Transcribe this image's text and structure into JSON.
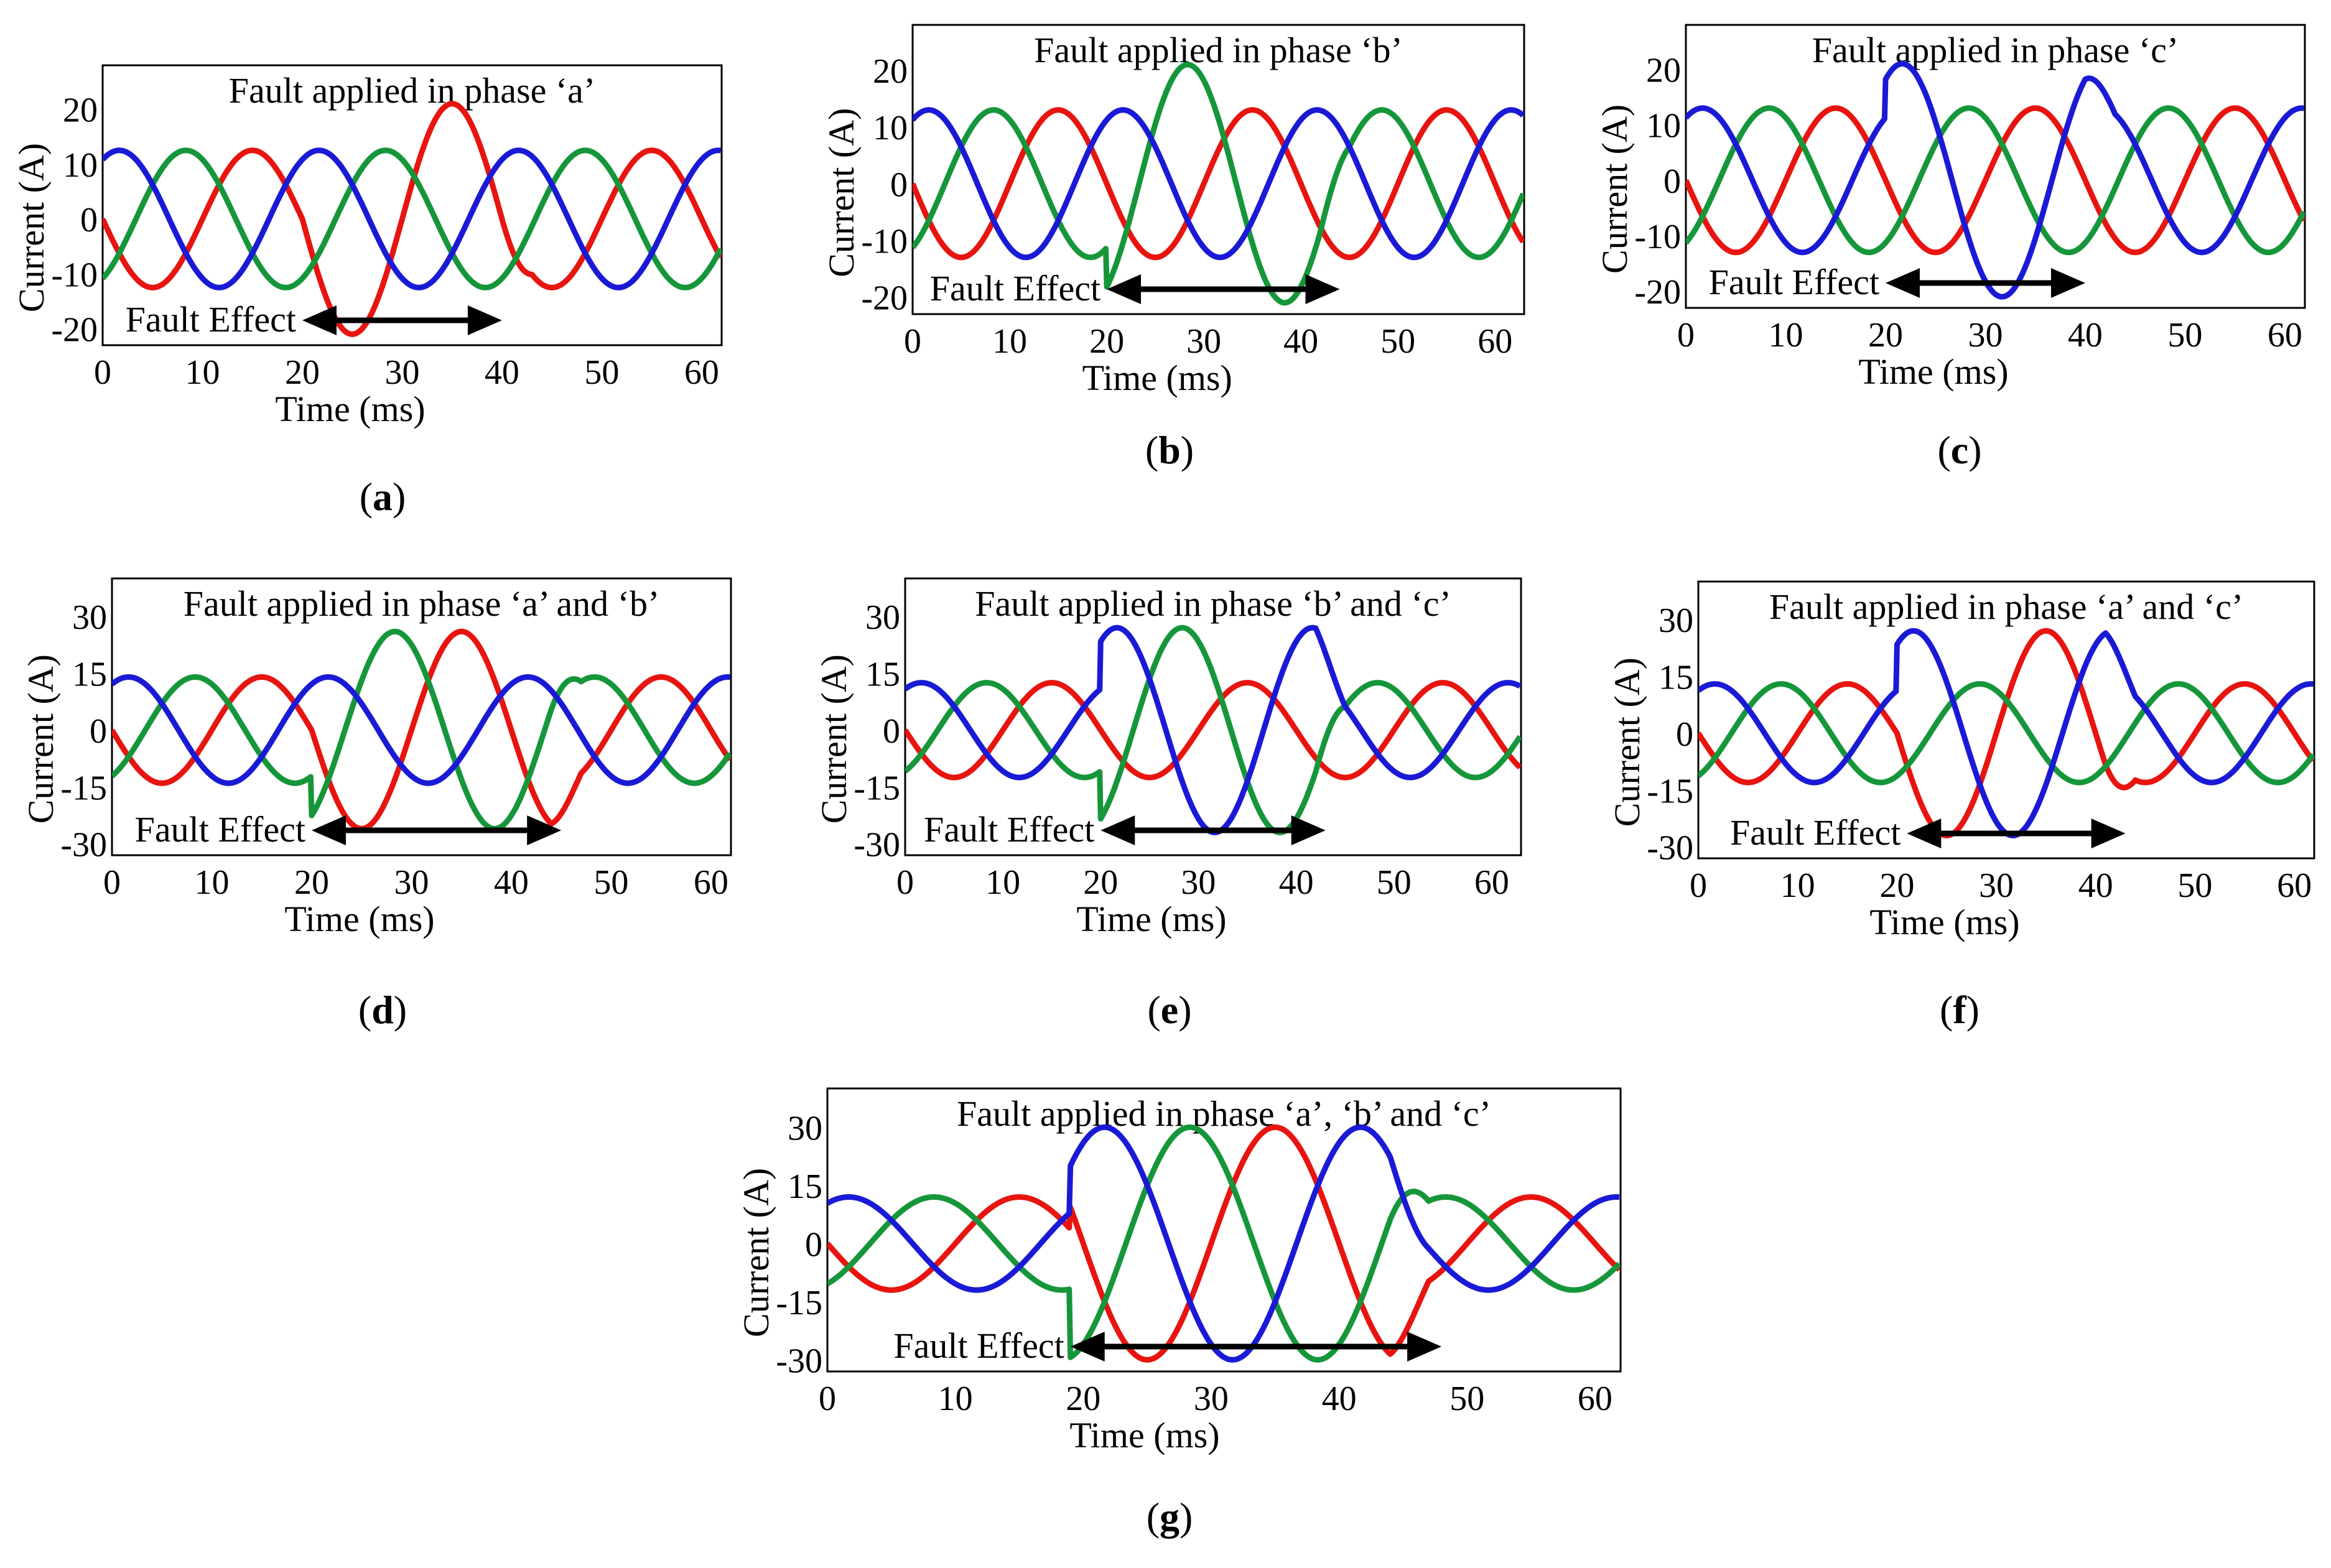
{
  "colors": {
    "phase_a": "#e8140f",
    "phase_b": "#16963a",
    "phase_c": "#1a1ad6",
    "axes": "#000000",
    "arrow": "#000000"
  },
  "chart_data": [
    {
      "type": "line",
      "id": "a",
      "panel_label": "a",
      "title": "Fault applied in phase ‘a’",
      "xlabel": "Time (ms)",
      "ylabel": "Current (A)",
      "xlim": [
        0,
        60
      ],
      "ylim": [
        -23,
        28
      ],
      "xticks": [
        "0",
        "10",
        "20",
        "30",
        "40",
        "50",
        "60"
      ],
      "yticks": [
        "20",
        "10",
        "0",
        "-10",
        "-20"
      ],
      "fault_effect": {
        "label": "Fault Effect",
        "x_start": 20,
        "x_end": 40
      },
      "fault_window": [
        20,
        40
      ],
      "faulted_phases": [
        "a"
      ],
      "peaks": {
        "normal": 12.5,
        "fault_a": 21
      }
    },
    {
      "type": "line",
      "id": "b",
      "panel_label": "b",
      "title": "Fault applied in phase ‘b’",
      "xlabel": "Time (ms)",
      "ylabel": "Current (A)",
      "xlim": [
        0,
        60
      ],
      "ylim": [
        -23,
        28
      ],
      "xticks": [
        "0",
        "10",
        "20",
        "30",
        "40",
        "50",
        "60"
      ],
      "yticks": [
        "20",
        "10",
        "0",
        "-10",
        "-20"
      ],
      "fault_effect": {
        "label": "Fault Effect",
        "x_start": 20,
        "x_end": 44
      },
      "fault_window": [
        20,
        42
      ],
      "faulted_phases": [
        "b"
      ],
      "peaks": {
        "normal": 13,
        "fault_b": 21
      }
    },
    {
      "type": "line",
      "id": "c",
      "panel_label": "c",
      "title": "Fault applied in phase ‘c’",
      "xlabel": "Time (ms)",
      "ylabel": "Current (A)",
      "xlim": [
        0,
        60
      ],
      "ylim": [
        -23,
        28
      ],
      "xticks": [
        "0",
        "10",
        "20",
        "30",
        "40",
        "50",
        "60"
      ],
      "yticks": [
        "20",
        "10",
        "0",
        "-10",
        "-20"
      ],
      "fault_effect": {
        "label": "Fault Effect",
        "x_start": 20,
        "x_end": 40
      },
      "fault_window": [
        20,
        40
      ],
      "faulted_phases": [
        "c"
      ],
      "peaks": {
        "normal": 13,
        "fault_c": 21
      }
    },
    {
      "type": "line",
      "id": "d",
      "panel_label": "d",
      "title": "Fault applied in phase ‘a’ and ‘b’",
      "xlabel": "Time (ms)",
      "ylabel": "Current (A)",
      "xlim": [
        0,
        60
      ],
      "ylim": [
        -33,
        40
      ],
      "xticks": [
        "0",
        "10",
        "20",
        "30",
        "40",
        "50",
        "60"
      ],
      "yticks": [
        "30",
        "15",
        "0",
        "-15",
        "-30"
      ],
      "fault_effect": {
        "label": "Fault Effect",
        "x_start": 20,
        "x_end": 45
      },
      "fault_window": [
        20,
        44
      ],
      "faulted_phases": [
        "a",
        "b"
      ],
      "peaks": {
        "normal": 14,
        "fault": 26
      }
    },
    {
      "type": "line",
      "id": "e",
      "panel_label": "e",
      "title": "Fault applied in phase ‘b’ and ‘c’",
      "xlabel": "Time (ms)",
      "ylabel": "Current (A)",
      "xlim": [
        0,
        60
      ],
      "ylim": [
        -33,
        40
      ],
      "xticks": [
        "0",
        "10",
        "20",
        "30",
        "40",
        "50",
        "60"
      ],
      "yticks": [
        "30",
        "15",
        "0",
        "-15",
        "-30"
      ],
      "fault_effect": {
        "label": "Fault Effect",
        "x_start": 20,
        "x_end": 43
      },
      "fault_window": [
        20,
        42
      ],
      "faulted_phases": [
        "b",
        "c"
      ],
      "peaks": {
        "normal": 12.5,
        "fault": 27
      }
    },
    {
      "type": "line",
      "id": "f",
      "panel_label": "f",
      "title": "Fault applied in phase ‘a’ and ‘c’",
      "xlabel": "Time (ms)",
      "ylabel": "Current (A)",
      "xlim": [
        0,
        60
      ],
      "ylim": [
        -33,
        40
      ],
      "xticks": [
        "0",
        "10",
        "20",
        "30",
        "40",
        "50",
        "60"
      ],
      "yticks": [
        "30",
        "15",
        "0",
        "-15",
        "-30"
      ],
      "fault_effect": {
        "label": "Fault Effect",
        "x_start": 21,
        "x_end": 43
      },
      "fault_window": [
        20,
        41
      ],
      "faulted_phases": [
        "a",
        "c"
      ],
      "peaks": {
        "normal": 13,
        "fault": 27
      }
    },
    {
      "type": "line",
      "id": "g",
      "panel_label": "g",
      "title": "Fault applied in phase ‘a’, ‘b’ and ‘c’",
      "xlabel": "Time (ms)",
      "ylabel": "Current (A)",
      "xlim": [
        0,
        60
      ],
      "ylim": [
        -33,
        40
      ],
      "xticks": [
        "0",
        "10",
        "20",
        "30",
        "40",
        "50",
        "60"
      ],
      "yticks": [
        "30",
        "15",
        "0",
        "-15",
        "-30"
      ],
      "fault_effect": {
        "label": "Fault Effect",
        "x_start": 19,
        "x_end": 48
      },
      "fault_window": [
        19,
        44
      ],
      "faulted_phases": [
        "a",
        "b",
        "c"
      ],
      "peaks": {
        "normal": 12,
        "fault": 30
      }
    }
  ]
}
